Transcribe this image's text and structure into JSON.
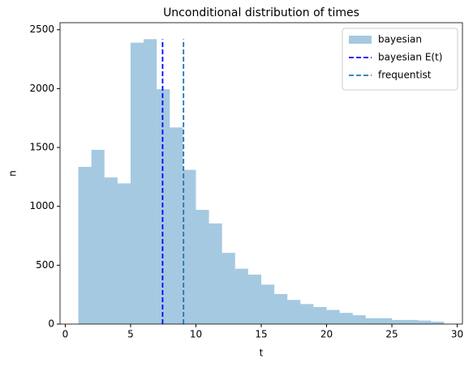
{
  "chart_data": {
    "type": "histogram",
    "title": "Unconditional distribution of times",
    "xlabel": "t",
    "ylabel": "n",
    "bins": [
      1,
      2,
      3,
      4,
      5,
      6,
      7,
      8,
      9,
      10,
      11,
      12,
      13,
      14,
      15,
      16,
      17,
      18,
      19,
      20,
      21,
      22,
      23,
      24,
      25,
      26,
      27,
      28,
      29
    ],
    "series": [
      {
        "name": "bayesian",
        "color": "#1f77b4",
        "alpha": 0.4,
        "values": [
          1335,
          1480,
          1245,
          1195,
          2390,
          2420,
          1995,
          1670,
          1310,
          970,
          855,
          605,
          470,
          420,
          335,
          255,
          205,
          170,
          145,
          120,
          95,
          75,
          50,
          50,
          35,
          35,
          30,
          20
        ]
      }
    ],
    "lines": [
      {
        "name": "bayesian E(t)",
        "color": "#0000ff",
        "x": 7.45,
        "ymin": 0,
        "ymax": 2420
      },
      {
        "name": "frequentist",
        "color": "#1f77b4",
        "x": 9.05,
        "ymin": 0,
        "ymax": 2420
      }
    ],
    "xlim": [
      -0.4,
      30.4
    ],
    "ylim": [
      0,
      2560
    ],
    "xticks": [
      0,
      5,
      10,
      15,
      20,
      25,
      30
    ],
    "yticks": [
      0,
      500,
      1000,
      1500,
      2000,
      2500
    ],
    "legend": "upper right"
  }
}
